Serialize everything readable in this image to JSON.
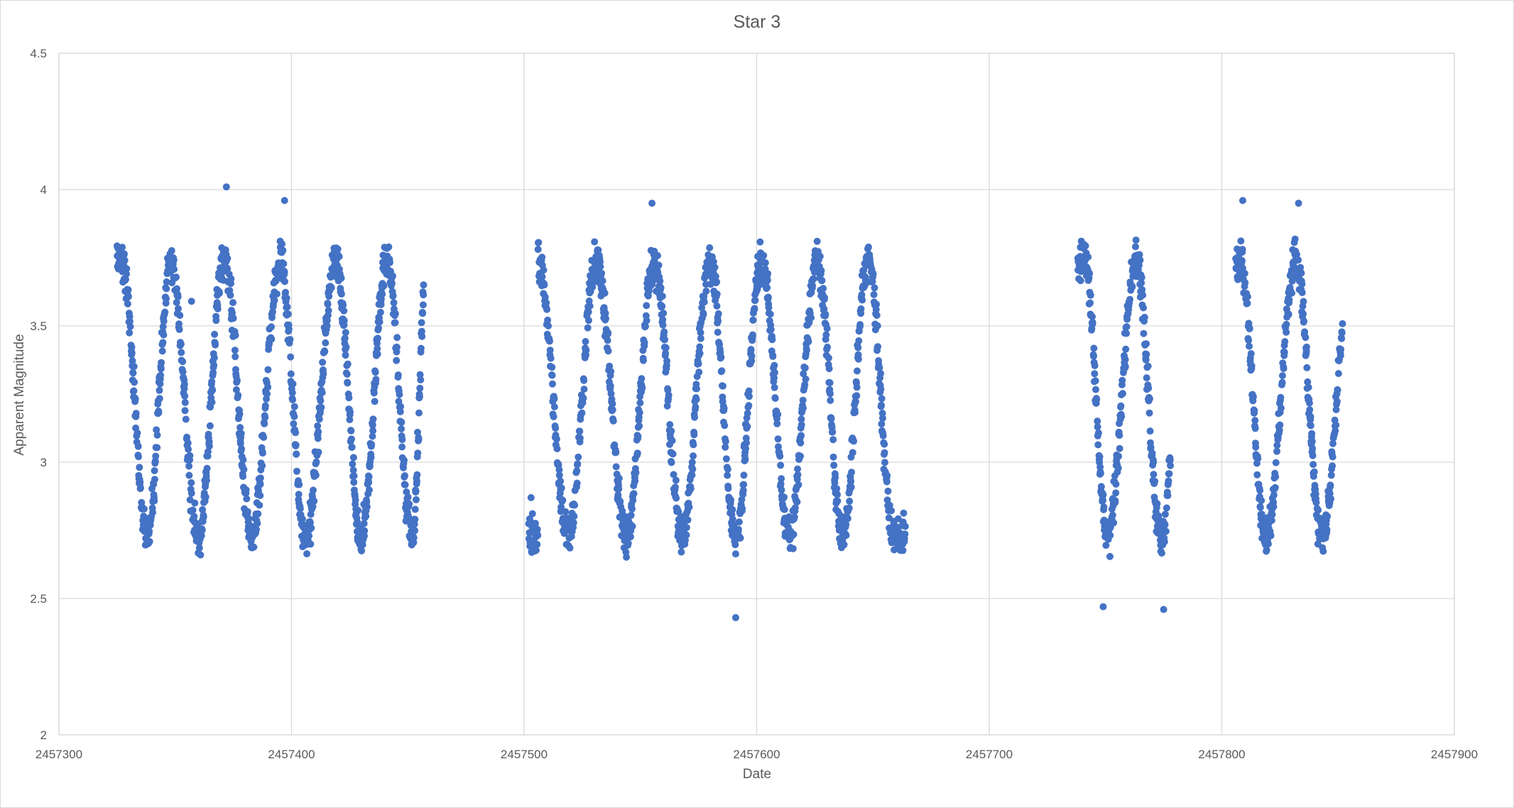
{
  "chart_data": {
    "type": "scatter",
    "title": "Star 3",
    "xlabel": "Date",
    "ylabel": "Apparent Magnitude",
    "xlim": [
      2457300,
      2457900
    ],
    "ylim": [
      2,
      4.5
    ],
    "x_ticks": [
      2457300,
      2457400,
      2457500,
      2457600,
      2457700,
      2457800,
      2457900
    ],
    "y_ticks": [
      2,
      2.5,
      3,
      3.5,
      4,
      4.5
    ],
    "x_tick_labels": [
      "2457300",
      "2457400",
      "2457500",
      "2457600",
      "2457700",
      "2457800",
      "2457900"
    ],
    "y_tick_labels": [
      "2",
      "2.5",
      "3",
      "3.5",
      "4",
      "4.5"
    ],
    "grid": true,
    "legend": "none",
    "marker_color": "#4472C4",
    "segments": [
      {
        "x_start": 2457325,
        "x_end": 2457457,
        "peaks": [
          2457327,
          2457348,
          2457371,
          2457395,
          2457419,
          2457441,
          2457458
        ],
        "troughs": [
          2457338,
          2457360,
          2457383,
          2457406,
          2457430,
          2457452
        ]
      },
      {
        "x_start": 2457502,
        "x_end": 2457664,
        "peaks": [
          2457506,
          2457531,
          2457556,
          2457580,
          2457602,
          2457626,
          2457648
        ],
        "troughs": [
          2457519,
          2457544,
          2457568,
          2457591,
          2457614,
          2457637,
          2457659
        ]
      },
      {
        "x_start": 2457738,
        "x_end": 2457778,
        "peaks": [
          2457741,
          2457763,
          2457785
        ],
        "troughs": [
          2457751,
          2457774
        ]
      },
      {
        "x_start": 2457806,
        "x_end": 2457852,
        "peaks": [
          2457808,
          2457832,
          2457856
        ],
        "troughs": [
          2457819,
          2457843
        ]
      }
    ],
    "magnitude_range": [
      2.43,
      4.01
    ],
    "outliers": [
      {
        "x": 2457372,
        "y": 4.01
      },
      {
        "x": 2457397,
        "y": 3.96
      },
      {
        "x": 2457591,
        "y": 2.43
      },
      {
        "x": 2457357,
        "y": 3.59
      },
      {
        "x": 2457503,
        "y": 2.87
      },
      {
        "x": 2457555,
        "y": 3.95
      },
      {
        "x": 2457809,
        "y": 3.96
      },
      {
        "x": 2457833,
        "y": 3.95
      },
      {
        "x": 2457775,
        "y": 2.46
      },
      {
        "x": 2457749,
        "y": 2.47
      }
    ]
  }
}
